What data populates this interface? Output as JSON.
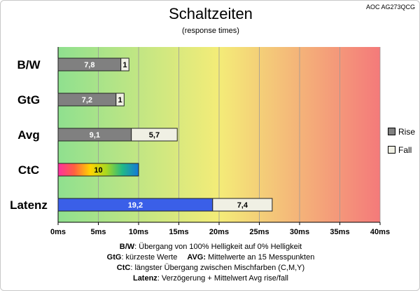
{
  "header": {
    "title": "Schaltzeiten",
    "subtitle": "(response times)",
    "model": "AOC AG273QCG"
  },
  "legend": {
    "rise_label": "Rise",
    "fall_label": "Fall"
  },
  "notes": {
    "line1_key": "B/W",
    "line1_text": ":  Übergang von 100% Helligkeit auf 0% Helligkeit",
    "line2_key1": "GtG",
    "line2_text1": ": kürzeste  Werte",
    "line2_key2": "AVG:",
    "line2_text2": " Mittelwerte  an 15 Messpunkten",
    "line3_key": "CtC",
    "line3_text": ": längster Übergang  zwischen Mischfarben  (C,M,Y)",
    "line4_key": "Latenz",
    "line4_text": ": Verzögerung  + Mittelwert  Avg rise/fall"
  },
  "colors": {
    "rise": "#808080",
    "fall": "#f0f0e4",
    "latency_rise": "#3a5fe8",
    "gradient_start": "#8fe08f",
    "gradient_mid": "#f4ec78",
    "gradient_end": "#f47a7a"
  },
  "chart_data": {
    "type": "bar",
    "orientation": "horizontal",
    "stacked": true,
    "title": "Schaltzeiten",
    "subtitle": "(response times)",
    "categories": [
      "B/W",
      "GtG",
      "Avg",
      "CtC",
      "Latenz"
    ],
    "x_ticks": [
      "0ms",
      "5ms",
      "10ms",
      "15ms",
      "20ms",
      "25ms",
      "30ms",
      "35ms",
      "40ms"
    ],
    "xlim": [
      0,
      40
    ],
    "grid": true,
    "legend_position": "right",
    "series": [
      {
        "name": "Rise",
        "values": [
          7.8,
          7.2,
          9.1,
          10,
          19.2
        ],
        "labels": [
          "7,8",
          "7,2",
          "9,1",
          "10",
          "19,2"
        ]
      },
      {
        "name": "Fall",
        "values": [
          1,
          1,
          5.7,
          0,
          7.4
        ],
        "labels": [
          "1",
          "1",
          "5,7",
          "",
          "7,4"
        ]
      }
    ]
  }
}
